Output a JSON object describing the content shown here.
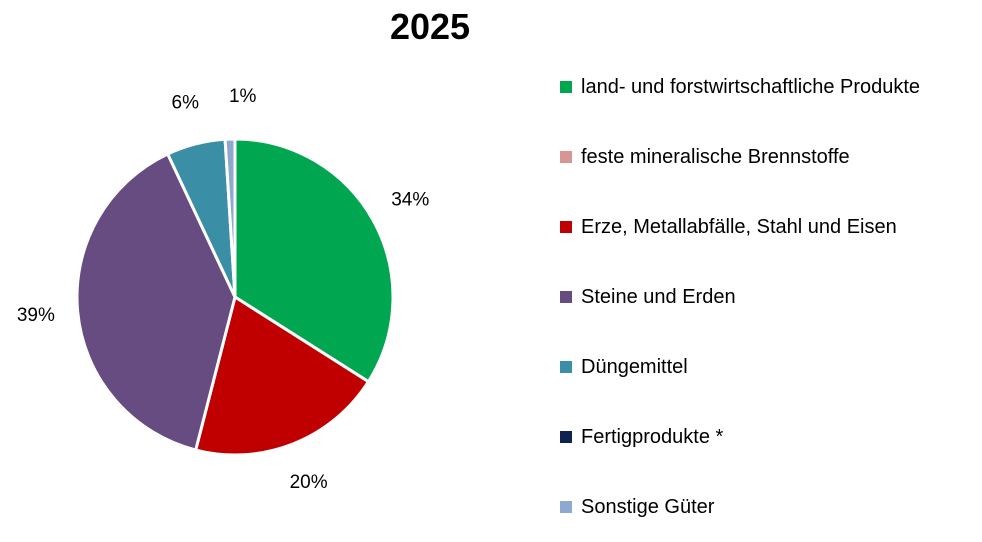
{
  "chart_data": {
    "type": "pie",
    "title": "2025",
    "legend_position": "right",
    "slices": [
      {
        "name": "land- und forstwirtschaftliche Produkte",
        "value": 34,
        "label": "34%",
        "color": "#00A650"
      },
      {
        "name": "feste mineralische Brennstoffe",
        "value": 0,
        "label": "",
        "color": "#D99594"
      },
      {
        "name": "Erze, Metallabfälle, Stahl und Eisen",
        "value": 20,
        "label": "20%",
        "color": "#C00000"
      },
      {
        "name": "Steine und Erden",
        "value": 39,
        "label": "39%",
        "color": "#664C80"
      },
      {
        "name": "Düngemittel",
        "value": 6,
        "label": "6%",
        "color": "#3A8FA6"
      },
      {
        "name": "Fertigprodukte *",
        "value": 0,
        "label": "",
        "color": "#0E2350"
      },
      {
        "name": "Sonstige Güter",
        "value": 1,
        "label": "1%",
        "color": "#8EA9CF"
      }
    ]
  }
}
